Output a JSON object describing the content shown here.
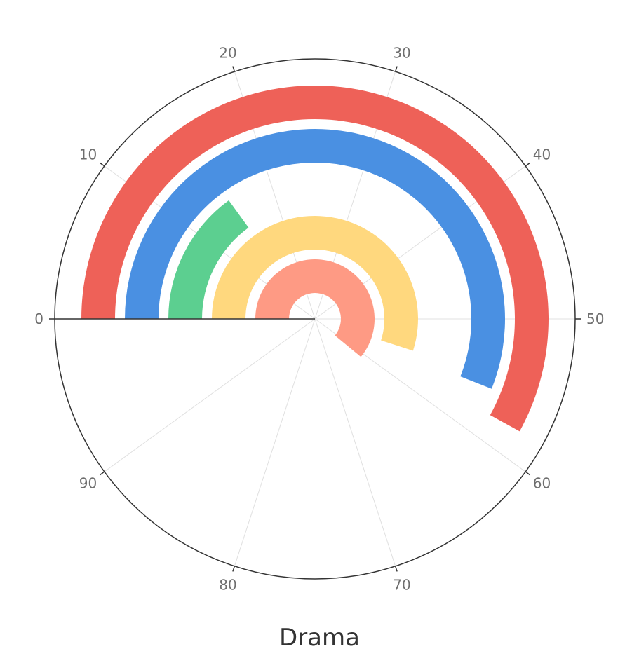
{
  "chart_data": {
    "type": "polar-bar",
    "title": "Drama",
    "angle_axis": {
      "min": 0,
      "max": 100,
      "ticks": [
        0,
        10,
        20,
        30,
        40,
        50,
        60,
        70,
        80,
        90
      ],
      "tick_labels": [
        "0",
        "10",
        "20",
        "30",
        "40",
        "50",
        "60",
        "70",
        "80",
        "90"
      ],
      "direction": "clockwise"
    },
    "grid": true,
    "series": [
      {
        "value": 58,
        "color": "#ee6158"
      },
      {
        "value": 56,
        "color": "#4a90e2"
      },
      {
        "value": 15,
        "color": "#5ccf90"
      },
      {
        "value": 55,
        "color": "#ffd87e"
      },
      {
        "value": 61,
        "color": "#fe9a84"
      }
    ]
  }
}
